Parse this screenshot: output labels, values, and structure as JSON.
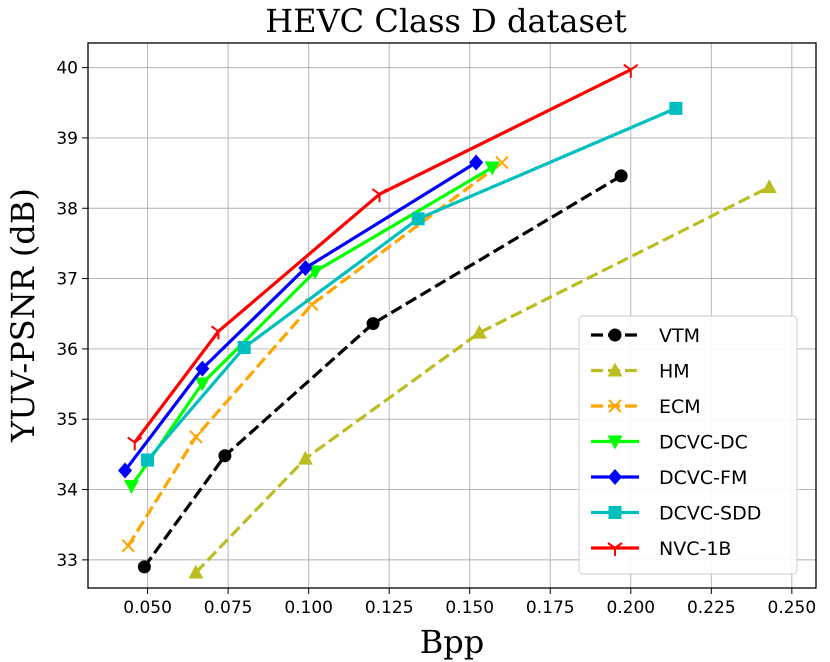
{
  "chart_data": {
    "type": "line",
    "title": "HEVC Class D dataset",
    "xlabel": "Bpp",
    "ylabel": "YUV-PSNR (dB)",
    "xlim": [
      0.0315,
      0.2575
    ],
    "ylim": [
      32.6,
      40.35
    ],
    "xticks": [
      0.05,
      0.075,
      0.1,
      0.125,
      0.15,
      0.175,
      0.2,
      0.225,
      0.25
    ],
    "xtick_labels": [
      "0.050",
      "0.075",
      "0.100",
      "0.125",
      "0.150",
      "0.175",
      "0.200",
      "0.225",
      "0.250"
    ],
    "yticks": [
      33,
      34,
      35,
      36,
      37,
      38,
      39,
      40
    ],
    "ytick_labels": [
      "33",
      "34",
      "35",
      "36",
      "37",
      "38",
      "39",
      "40"
    ],
    "grid": true,
    "legend_position": "lower-right",
    "series": [
      {
        "name": "VTM",
        "color": "#000000",
        "dash": "dashed",
        "marker": "circle",
        "x": [
          0.049,
          0.074,
          0.12,
          0.197
        ],
        "y": [
          32.9,
          34.48,
          36.36,
          38.46
        ]
      },
      {
        "name": "HM",
        "color": "#bcbd22",
        "dash": "dashed",
        "marker": "triangle-up",
        "x": [
          0.065,
          0.099,
          0.153,
          0.243
        ],
        "y": [
          32.82,
          34.44,
          36.23,
          38.3
        ]
      },
      {
        "name": "ECM",
        "color": "#ffa500",
        "dash": "dashed",
        "marker": "x",
        "x": [
          0.044,
          0.065,
          0.101,
          0.16
        ],
        "y": [
          33.2,
          34.75,
          36.63,
          38.65
        ]
      },
      {
        "name": "DCVC-DC",
        "color": "#00ff00",
        "dash": "solid",
        "marker": "triangle-down",
        "x": [
          0.045,
          0.067,
          0.102,
          0.157
        ],
        "y": [
          34.05,
          35.51,
          37.1,
          38.58
        ]
      },
      {
        "name": "DCVC-FM",
        "color": "#0000ff",
        "dash": "solid",
        "marker": "diamond",
        "x": [
          0.043,
          0.067,
          0.099,
          0.152
        ],
        "y": [
          34.27,
          35.72,
          37.15,
          38.65
        ]
      },
      {
        "name": "DCVC-SDD",
        "color": "#00bfbf",
        "dash": "solid",
        "marker": "square",
        "x": [
          0.05,
          0.08,
          0.134,
          0.214
        ],
        "y": [
          34.42,
          36.02,
          37.85,
          39.42
        ]
      },
      {
        "name": "NVC-1B",
        "color": "#ff0000",
        "dash": "solid",
        "marker": "tri-down",
        "x": [
          0.046,
          0.072,
          0.122,
          0.2
        ],
        "y": [
          34.67,
          36.25,
          38.2,
          39.97
        ]
      }
    ]
  }
}
